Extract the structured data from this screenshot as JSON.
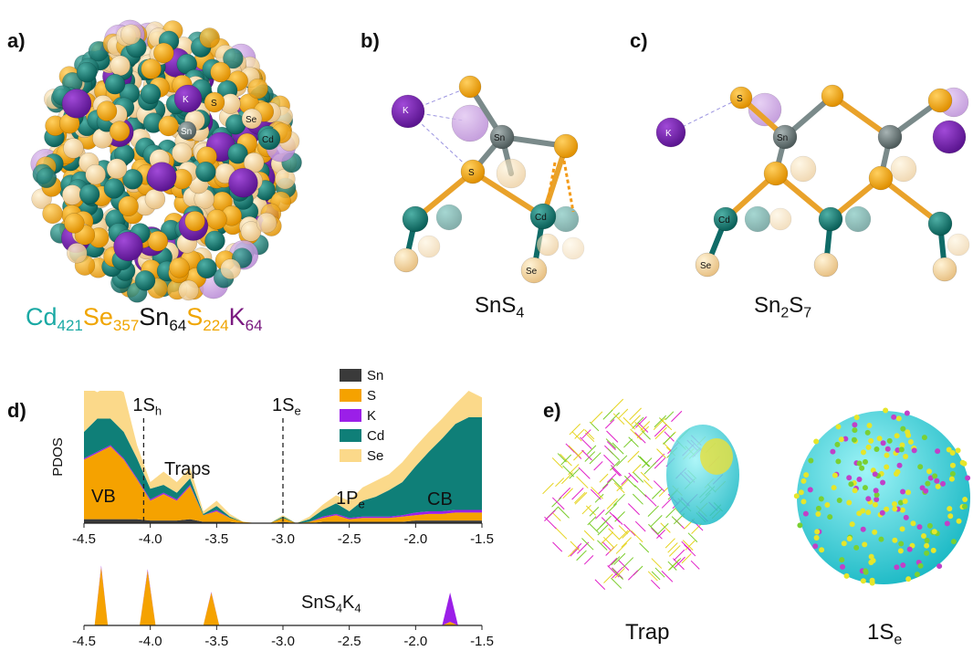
{
  "panel_a": {
    "label": "a)",
    "atoms": [
      "K",
      "S",
      "Se",
      "Sn",
      "Cd"
    ],
    "formula": [
      {
        "t": "Cd",
        "sub": "421",
        "color": "#1aa9a4"
      },
      {
        "t": "Se",
        "sub": "357",
        "color": "#f0a500"
      },
      {
        "t": "Sn",
        "sub": "64",
        "color": "#111111"
      },
      {
        "t": "S",
        "sub": "224",
        "color": "#f0a500"
      },
      {
        "t": "K",
        "sub": "64",
        "color": "#7a1a80"
      }
    ]
  },
  "panel_b": {
    "label": "b)",
    "atoms": [
      "K",
      "Sn",
      "S",
      "Cd",
      "Se"
    ],
    "caption": [
      {
        "t": "SnS",
        "sub": "4"
      }
    ]
  },
  "panel_c": {
    "label": "c)",
    "atoms": [
      "S",
      "K",
      "Sn",
      "Cd",
      "Se"
    ],
    "caption": [
      {
        "t": "Sn",
        "sub": "2"
      },
      {
        "t": "S",
        "sub": "7"
      }
    ]
  },
  "panel_d": {
    "label": "d)"
  },
  "panel_e": {
    "label": "e)",
    "captions": [
      [
        {
          "t": "Trap"
        }
      ],
      [
        {
          "t": "1S",
          "sub": "e"
        }
      ]
    ]
  },
  "chart_data": [
    {
      "type": "area",
      "stacked": true,
      "ylabel": "PDOS",
      "x": [
        -4.5,
        -4.4,
        -4.3,
        -4.2,
        -4.1,
        -4.0,
        -3.9,
        -3.8,
        -3.7,
        -3.6,
        -3.5,
        -3.4,
        -3.3,
        -3.2,
        -3.1,
        -3.0,
        -2.9,
        -2.8,
        -2.7,
        -2.6,
        -2.5,
        -2.4,
        -2.3,
        -2.2,
        -2.1,
        -2.0,
        -1.9,
        -1.8,
        -1.7,
        -1.6,
        -1.5
      ],
      "xlim": [
        -4.5,
        -1.5
      ],
      "ylim": [
        0,
        100
      ],
      "xticks": [
        -4.5,
        {
          "value": -4,
          "label": "-4.0"
        },
        -3.5,
        {
          "value": -3,
          "label": "-3.0"
        },
        -2.5,
        {
          "value": -2,
          "label": "-2.0"
        },
        -1.5
      ],
      "legend": "upper-right",
      "series": [
        {
          "name": "Sn",
          "color": "#3a3a3a",
          "values": [
            3,
            3,
            3,
            3,
            3,
            2,
            2,
            2,
            3,
            1,
            1,
            1,
            0,
            0,
            0,
            1,
            0,
            0,
            1,
            1,
            1,
            1,
            1,
            1,
            1,
            2,
            2,
            2,
            2,
            2,
            2
          ]
        },
        {
          "name": "S",
          "color": "#f5a200",
          "values": [
            45,
            50,
            55,
            45,
            30,
            15,
            20,
            15,
            25,
            5,
            8,
            3,
            1,
            0,
            0,
            3,
            0,
            1,
            3,
            5,
            2,
            3,
            3,
            3,
            4,
            4,
            5,
            5,
            6,
            6,
            6
          ]
        },
        {
          "name": "K",
          "color": "#9b1fe8",
          "values": [
            1,
            1,
            1,
            1,
            1,
            1,
            1,
            1,
            1,
            0,
            1,
            0,
            0,
            0,
            0,
            0,
            0,
            0,
            1,
            1,
            1,
            1,
            1,
            1,
            1,
            2,
            2,
            2,
            2,
            2,
            2
          ]
        },
        {
          "name": "Cd",
          "color": "#0f7f78",
          "values": [
            20,
            25,
            20,
            20,
            15,
            8,
            6,
            5,
            5,
            1,
            3,
            1,
            0,
            0,
            0,
            1,
            0,
            2,
            5,
            8,
            5,
            12,
            15,
            20,
            25,
            35,
            45,
            55,
            65,
            70,
            70
          ]
        },
        {
          "name": "Se",
          "color": "#fbd98a",
          "values": [
            35,
            20,
            25,
            30,
            10,
            5,
            10,
            8,
            8,
            2,
            4,
            2,
            0,
            0,
            0,
            1,
            0,
            2,
            4,
            6,
            8,
            10,
            12,
            12,
            15,
            15,
            15,
            15,
            15,
            20,
            15
          ]
        }
      ],
      "markers": [
        {
          "x": -4.05,
          "label": {
            "t": "1S",
            "sub": "h"
          }
        },
        {
          "x": -3.0,
          "label": {
            "t": "1S",
            "sub": "e"
          }
        }
      ],
      "annotations": [
        {
          "t": "VB"
        },
        {
          "t": "Traps"
        },
        {
          "t": "1P",
          "sub": "e"
        },
        {
          "t": "CB"
        }
      ]
    },
    {
      "type": "area",
      "stacked": true,
      "title": [
        {
          "t": "SnS",
          "sub": "4"
        },
        {
          "t": "K",
          "sub": "4"
        }
      ],
      "x": [
        -4.5,
        -4.42,
        -4.37,
        -4.32,
        -4.25,
        -4.08,
        -4.02,
        -3.96,
        -3.9,
        -3.6,
        -3.54,
        -3.48,
        -3.4,
        -1.8,
        -1.74,
        -1.68,
        -1.5
      ],
      "xlim": [
        -4.5,
        -1.5
      ],
      "ylim": [
        0,
        100
      ],
      "xticks": [
        -4.5,
        {
          "value": -4,
          "label": "-4.0"
        },
        -3.5,
        {
          "value": -3,
          "label": "-3.0"
        },
        -2.5,
        {
          "value": -2,
          "label": "-2.0"
        },
        -1.5
      ],
      "series": [
        {
          "color": "#f5a200",
          "values": [
            0,
            0,
            80,
            0,
            0,
            0,
            75,
            0,
            0,
            0,
            45,
            0,
            0,
            0,
            5,
            0,
            0
          ]
        },
        {
          "color": "#9b1fe8",
          "values": [
            0,
            0,
            2,
            0,
            0,
            0,
            2,
            0,
            0,
            0,
            1,
            0,
            0,
            0,
            40,
            0,
            0
          ]
        }
      ]
    }
  ]
}
